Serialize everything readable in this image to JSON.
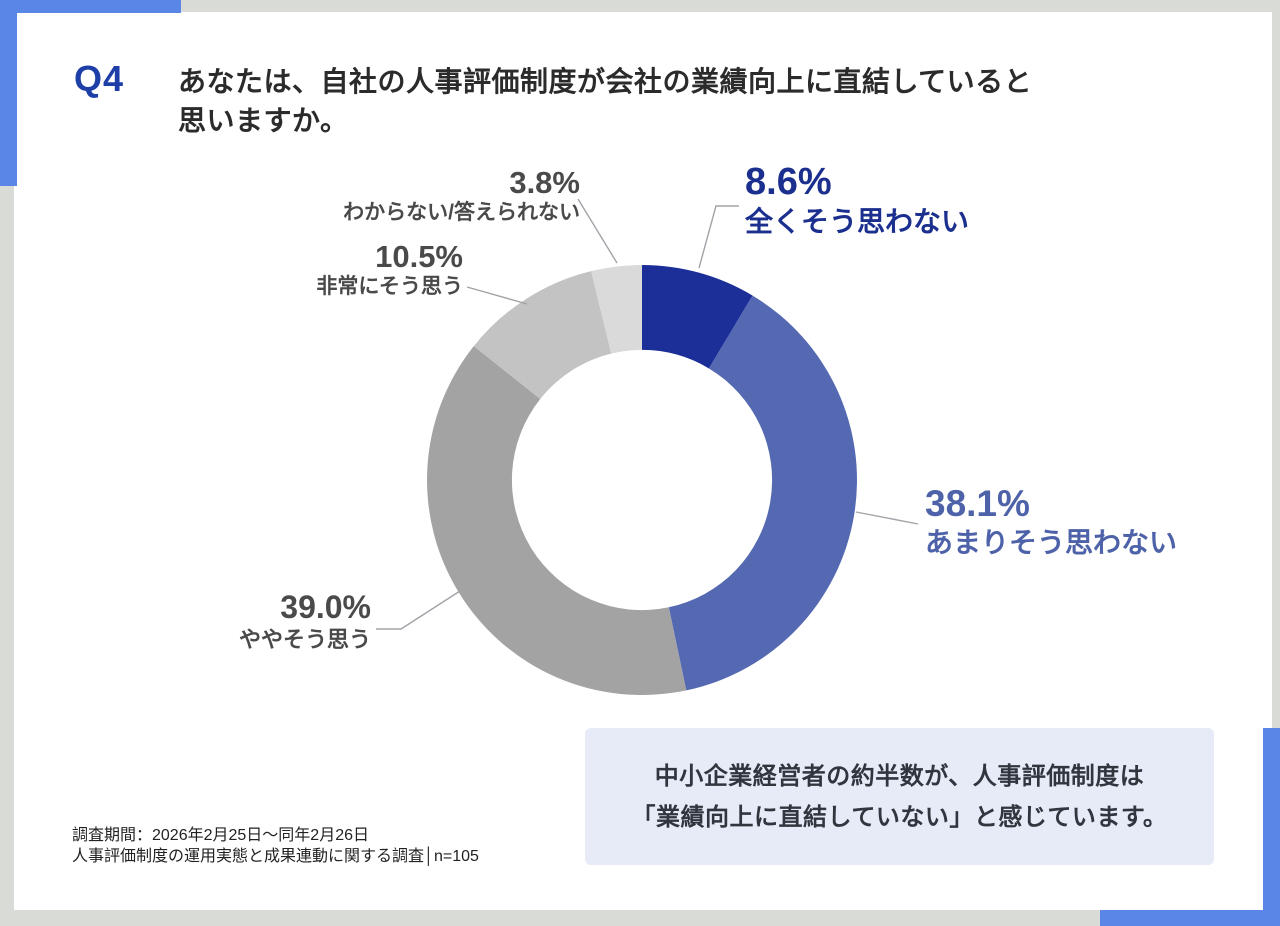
{
  "header": {
    "question_number": "Q4",
    "title_line1": "あなたは、自社の人事評価制度が会社の業績向上に直結していると",
    "title_line2": "思いますか。"
  },
  "chart_data": {
    "type": "pie",
    "subtype": "donut",
    "title": "自社の人事評価制度が会社の業績向上に直結していると思うか",
    "direction": "clockwise",
    "start_angle_deg": 0,
    "inner_radius_ratio": 0.605,
    "segments": [
      {
        "label": "全くそう思わない",
        "value": 8.6,
        "pct_label": "8.6%",
        "color": "#1C2F99"
      },
      {
        "label": "あまりそう思わない",
        "value": 38.1,
        "pct_label": "38.1%",
        "color": "#5569B2"
      },
      {
        "label": "ややそう思う",
        "value": 39.0,
        "pct_label": "39.0%",
        "color": "#A3A3A3"
      },
      {
        "label": "非常にそう思う",
        "value": 10.5,
        "pct_label": "10.5%",
        "color": "#C3C3C3"
      },
      {
        "label": "わからない/答えられない",
        "value": 3.8,
        "pct_label": "3.8%",
        "color": "#DADADA"
      }
    ]
  },
  "callout": {
    "line1": "中小企業経営者の約半数が、人事評価制度は",
    "line2": "「業績向上に直結していない」と感じています。"
  },
  "footer": {
    "line1": "調査期間：2026年2月25日～同年2月26日",
    "line2": "人事評価制度の運用実態と成果連動に関する調査│n=105"
  },
  "colors": {
    "accent_blue": "#5A86E8",
    "question_number_blue": "#1E3FA8",
    "label_navy": "#1B2F8E",
    "label_blue": "#4D62A8",
    "label_gray": "#4A4A4A",
    "callout_bg": "#E7EBF7",
    "page_bg": "#D9DBD6",
    "leader_line": "#A0A4A8"
  }
}
